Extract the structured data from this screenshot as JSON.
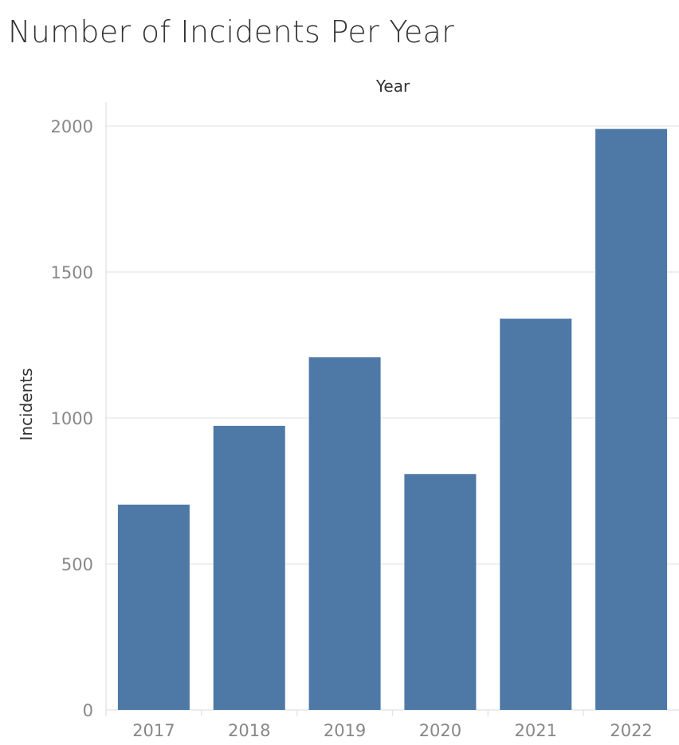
{
  "chart_data": {
    "type": "bar",
    "title": "Number of Incidents Per Year",
    "xlabel": "Year",
    "ylabel": "Incidents",
    "categories": [
      "2017",
      "2018",
      "2019",
      "2020",
      "2021",
      "2022"
    ],
    "values": [
      703,
      973,
      1208,
      808,
      1340,
      1990
    ],
    "ylim": [
      0,
      2000
    ],
    "yticks": [
      "0",
      "500",
      "1000",
      "1500",
      "2000"
    ],
    "grid": true,
    "bar_color": "#4e79a7"
  }
}
